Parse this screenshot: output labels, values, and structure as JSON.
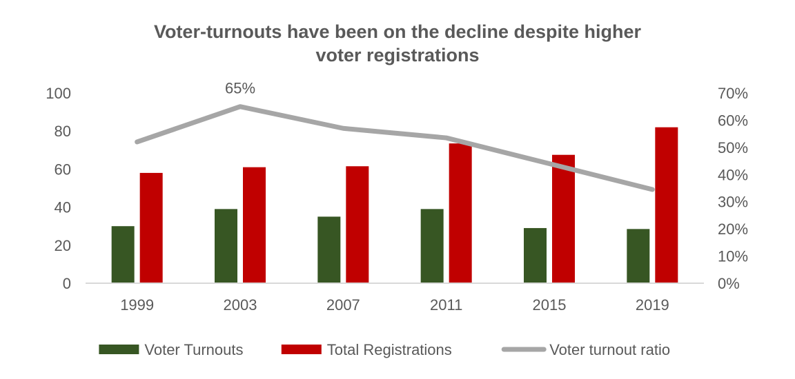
{
  "chart_data": {
    "type": "bar",
    "title_lines": [
      "Voter-turnouts have been on the decline despite higher",
      "voter registrations"
    ],
    "categories": [
      "1999",
      "2003",
      "2007",
      "2011",
      "2015",
      "2019"
    ],
    "series": [
      {
        "name": "Voter Turnouts",
        "type": "bar",
        "axis": "left",
        "color": "#375623",
        "values": [
          30,
          39,
          35,
          39,
          29,
          28.5
        ]
      },
      {
        "name": "Total Registrations",
        "type": "bar",
        "axis": "left",
        "color": "#c00000",
        "values": [
          58,
          61,
          61.5,
          73.5,
          67.5,
          82
        ]
      },
      {
        "name": "Voter turnout ratio",
        "type": "line",
        "axis": "right",
        "color": "#a6a6a6",
        "values": [
          0.52,
          0.65,
          0.57,
          0.535,
          0.44,
          0.345
        ]
      }
    ],
    "y_left": {
      "min": 0,
      "max": 100,
      "ticks": [
        "0",
        "20",
        "40",
        "60",
        "80",
        "100"
      ]
    },
    "y_right": {
      "min": 0,
      "max": 0.7,
      "ticks": [
        "0%",
        "10%",
        "20%",
        "30%",
        "40%",
        "50%",
        "60%",
        "70%"
      ]
    },
    "annotation": {
      "series": "Voter turnout ratio",
      "category": "2003",
      "text": "65%"
    },
    "legend_position": "bottom",
    "grid": false
  }
}
